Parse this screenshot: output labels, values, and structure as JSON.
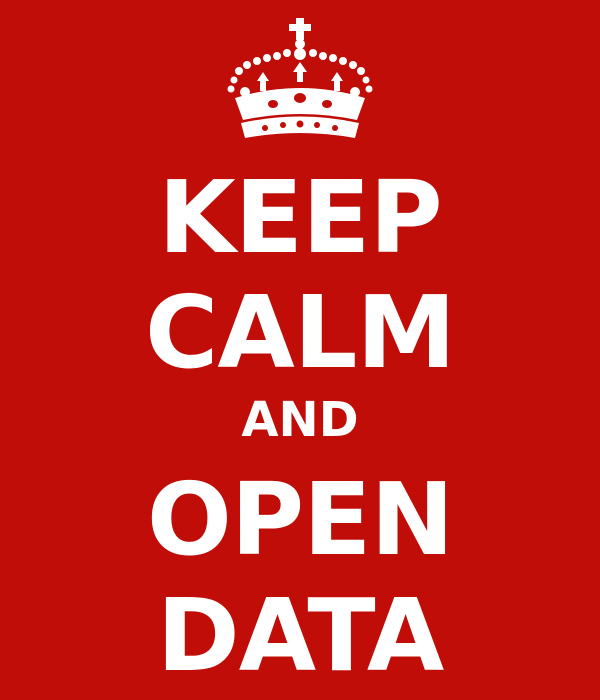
{
  "poster": {
    "background_color": "#c00d07",
    "text_color": "#ffffff",
    "emblem": "crown-icon",
    "lines": [
      "KEEP",
      "CALM",
      "AND",
      "OPEN",
      "DATA"
    ]
  }
}
